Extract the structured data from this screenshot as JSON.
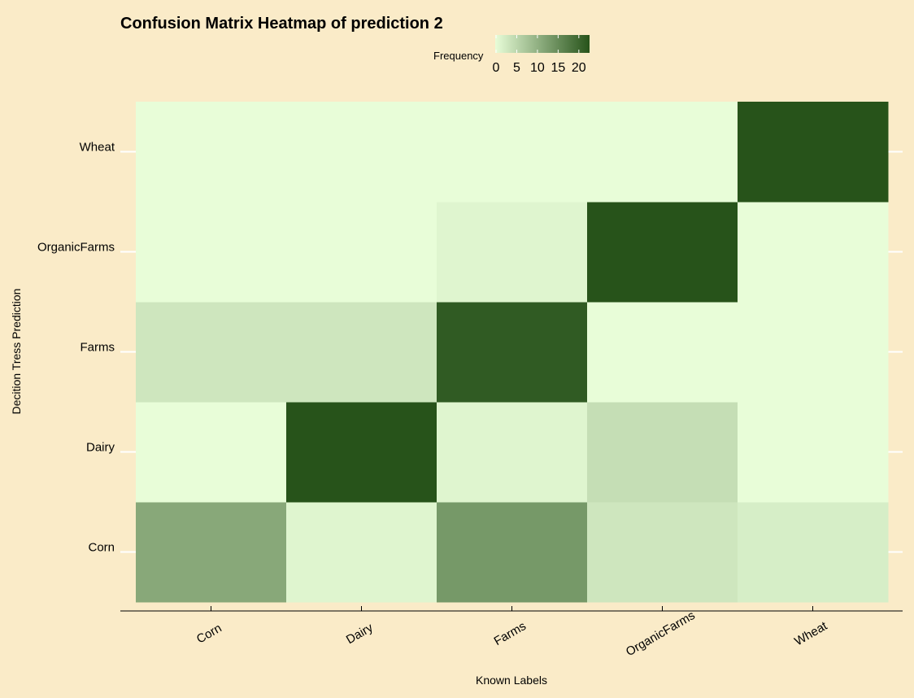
{
  "chart_data": {
    "type": "heatmap",
    "title": "Confusion Matrix Heatmap of prediction 2",
    "xlabel": "Known Labels",
    "ylabel": "Decition Tress Prediction",
    "x_categories": [
      "Corn",
      "Dairy",
      "Farms",
      "OrganicFarms",
      "Wheat"
    ],
    "y_categories": [
      "Corn",
      "Dairy",
      "Farms",
      "OrganicFarms",
      "Wheat"
    ],
    "values": [
      [
        11,
        1,
        13,
        3,
        2
      ],
      [
        0,
        22,
        1,
        4,
        0
      ],
      [
        3,
        3,
        21,
        0,
        0
      ],
      [
        0,
        0,
        1,
        22,
        0
      ],
      [
        0,
        0,
        0,
        0,
        22
      ]
    ],
    "legend": {
      "title": "Frequency",
      "ticks": [
        0,
        5,
        10,
        15,
        20
      ],
      "range": [
        0,
        22
      ],
      "low_color": "#E8FDD8",
      "high_color": "#27531A",
      "placement": "top"
    },
    "grid": true
  }
}
